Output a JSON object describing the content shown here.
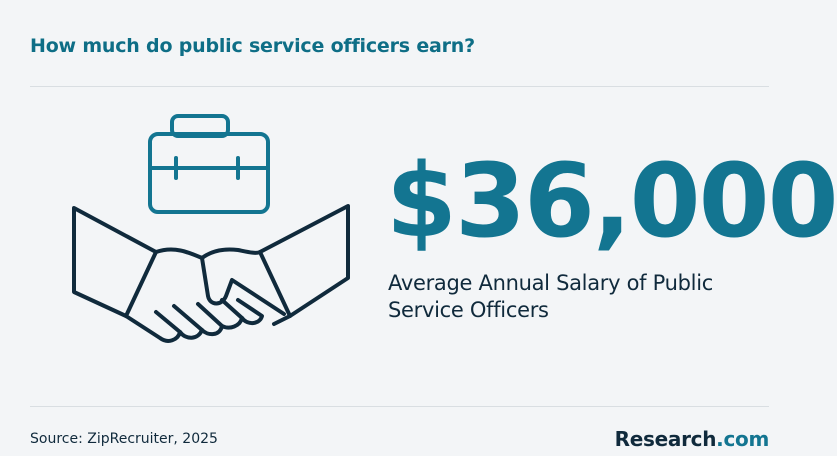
{
  "header": {
    "title": "How much do public service officers earn?"
  },
  "stat": {
    "value": "$36,000",
    "label": "Average Annual Salary of Public Service Officers"
  },
  "footer": {
    "source": "Source: ZipRecruiter, 2025",
    "brand_main": "Research",
    "brand_suffix": ".com"
  },
  "icons": {
    "briefcase": "briefcase-icon",
    "handshake": "handshake-icon"
  },
  "colors": {
    "accent": "#137591",
    "text": "#102a3c",
    "background": "#f3f5f7",
    "divider": "#d9dee2"
  }
}
